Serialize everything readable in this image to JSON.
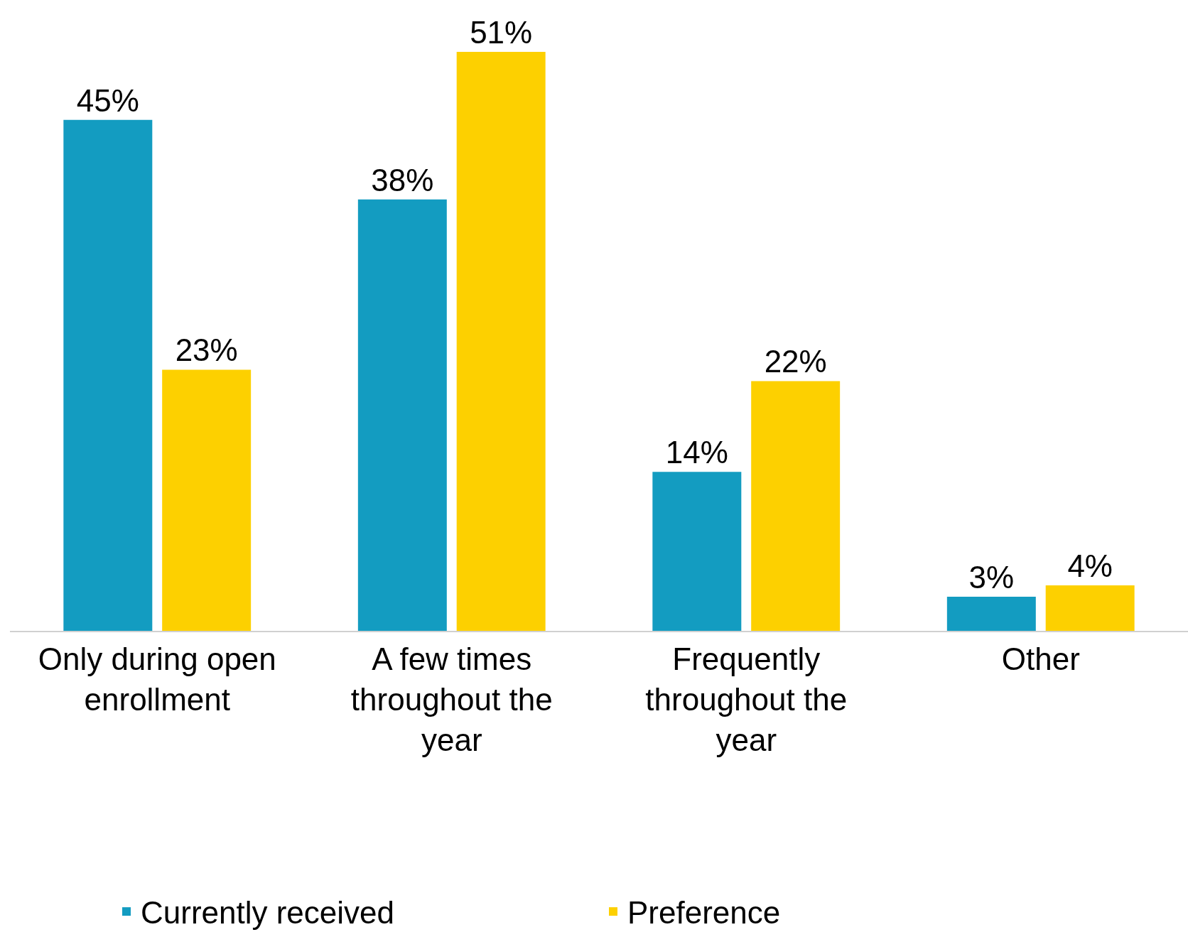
{
  "chart_data": {
    "type": "bar",
    "categories": [
      "Only during open enrollment",
      "A few times throughout the year",
      "Frequently throughout the year",
      "Other"
    ],
    "series": [
      {
        "name": "Currently received",
        "color": "#139cc1",
        "values": [
          45,
          38,
          14,
          3
        ],
        "value_labels": [
          "45%",
          "38%",
          "14%",
          "3%"
        ]
      },
      {
        "name": "Preference",
        "color": "#fdd000",
        "values": [
          23,
          51,
          22,
          4
        ],
        "value_labels": [
          "23%",
          "51%",
          "22%",
          "4%"
        ]
      }
    ],
    "legend": "bottom",
    "grid": false
  }
}
